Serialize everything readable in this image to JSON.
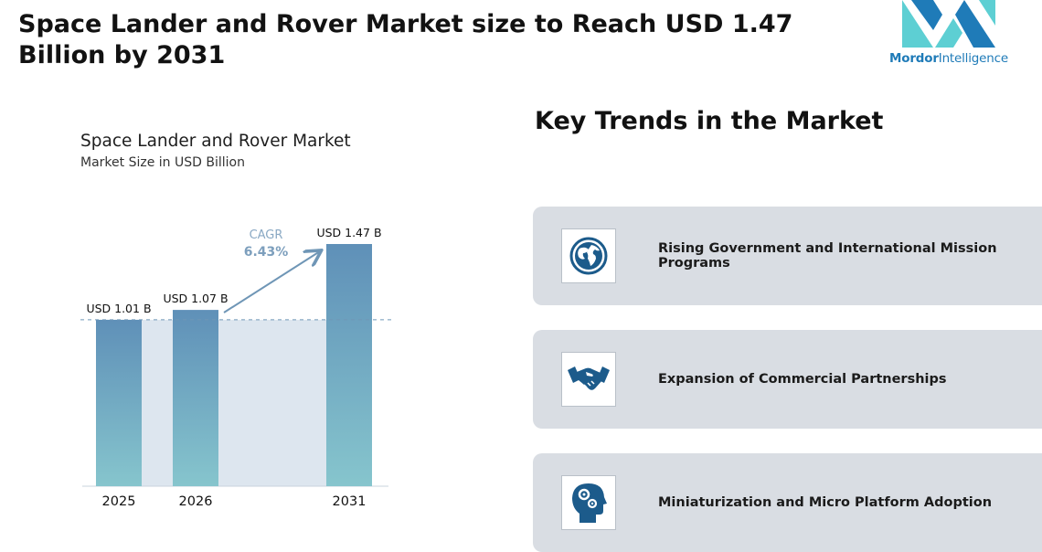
{
  "headline": "Space Lander and Rover Market size to Reach USD 1.47 Billion by 2031",
  "logo": {
    "brand_bold": "Mordor",
    "brand_light": "Intelligence"
  },
  "colors": {
    "bar_top": "#5f90b8",
    "bar_bottom": "#86c5cd",
    "band": "#dde6ef",
    "accent": "#6f96b6",
    "icon": "#1c5b8b",
    "card": "#d9dde3"
  },
  "chart_data": {
    "type": "bar",
    "title": "Space Lander and Rover Market",
    "subtitle": "Market Size in USD Billion",
    "categories": [
      "2025",
      "2026",
      "2031"
    ],
    "values": [
      1.01,
      1.07,
      1.47
    ],
    "value_labels": [
      "USD 1.01 B",
      "USD 1.07 B",
      "USD 1.47 B"
    ],
    "cagr": {
      "label": "CAGR",
      "value": "6.43%"
    },
    "ylim": [
      0,
      1.47
    ],
    "grid": false,
    "legend": "none"
  },
  "trends": {
    "title": "Key Trends in the Market",
    "items": [
      {
        "label": "Rising Government and International Mission Programs",
        "icon": "globe-icon"
      },
      {
        "label": "Expansion of Commercial Partnerships",
        "icon": "handshake-icon"
      },
      {
        "label": "Miniaturization and Micro Platform Adoption",
        "icon": "head-gears-icon"
      }
    ]
  }
}
